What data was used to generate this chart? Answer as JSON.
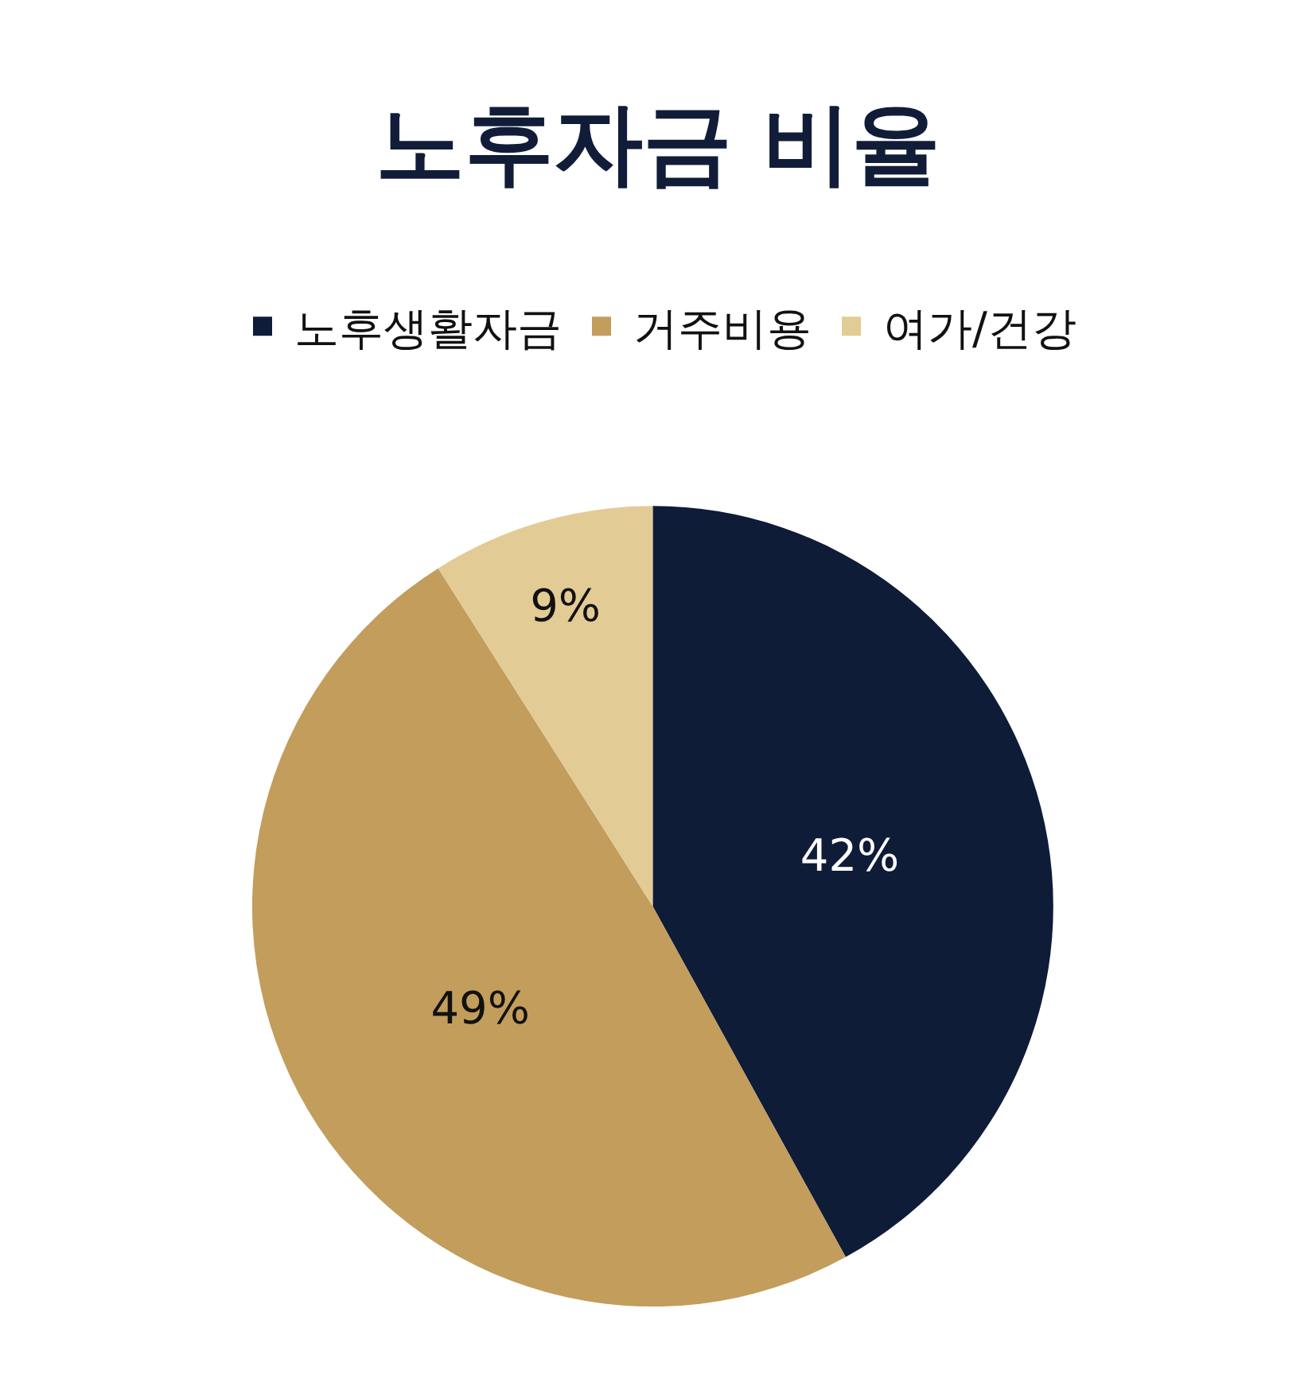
{
  "chart_data": {
    "type": "pie",
    "title": "노후자금 비율",
    "categories": [
      "노후생활자금",
      "거주비용",
      "여가/건강"
    ],
    "values": [
      42,
      49,
      9
    ],
    "colors": [
      "#0f1c38",
      "#c29d5c",
      "#e3cb95"
    ],
    "value_labels": [
      "42%",
      "49%",
      "9%"
    ],
    "legend": "top"
  }
}
